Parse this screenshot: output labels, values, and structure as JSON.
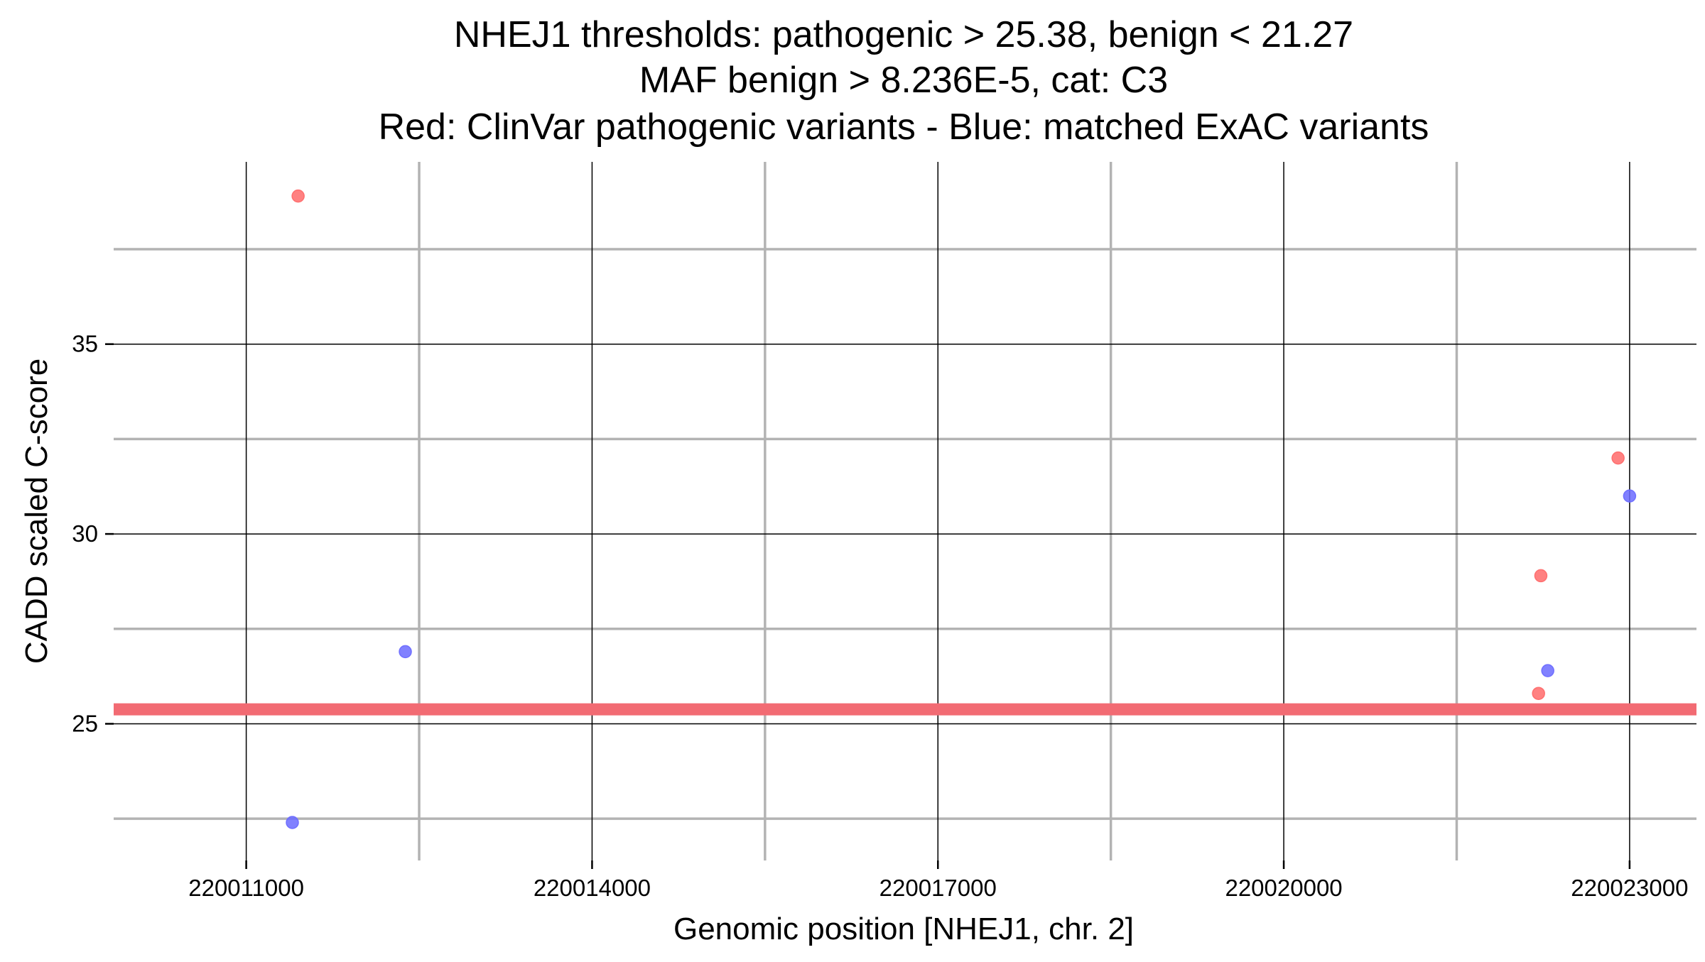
{
  "chart_data": {
    "type": "scatter",
    "title_lines": [
      "NHEJ1 thresholds: pathogenic > 25.38, benign < 21.27",
      "MAF benign > 8.236E-5, cat: C3",
      "Red: ClinVar pathogenic variants - Blue: matched ExAC variants"
    ],
    "xlabel": "Genomic position [NHEJ1, chr. 2]",
    "ylabel": "CADD scaled C-score",
    "xlim": [
      220009850,
      220023580
    ],
    "ylim": [
      21.4,
      39.8
    ],
    "x_ticks": [
      220011000,
      220014000,
      220017000,
      220020000,
      220023000
    ],
    "x_tick_labels": [
      "220011000",
      "220014000",
      "220017000",
      "220020000",
      "220023000"
    ],
    "x_minor_gridlines": [
      220012500,
      220015500,
      220018500,
      220021500
    ],
    "y_ticks": [
      25,
      30,
      35
    ],
    "y_tick_labels": [
      "25",
      "30",
      "35"
    ],
    "y_minor_gridlines": [
      22.5,
      27.5,
      32.5,
      37.5
    ],
    "grid": true,
    "legend": "none",
    "threshold_line": {
      "y": 25.38,
      "color": "#f26b73"
    },
    "series": [
      {
        "color": "#ff6b6b",
        "points": [
          {
            "x": 220011450,
            "y": 38.9
          },
          {
            "x": 220022210,
            "y": 25.8
          },
          {
            "x": 220022230,
            "y": 28.9
          },
          {
            "x": 220022900,
            "y": 32.0
          }
        ]
      },
      {
        "color": "#6b6bff",
        "points": [
          {
            "x": 220011400,
            "y": 22.4
          },
          {
            "x": 220012380,
            "y": 26.9
          },
          {
            "x": 220022290,
            "y": 26.4
          },
          {
            "x": 220023000,
            "y": 31.0
          }
        ]
      }
    ]
  }
}
